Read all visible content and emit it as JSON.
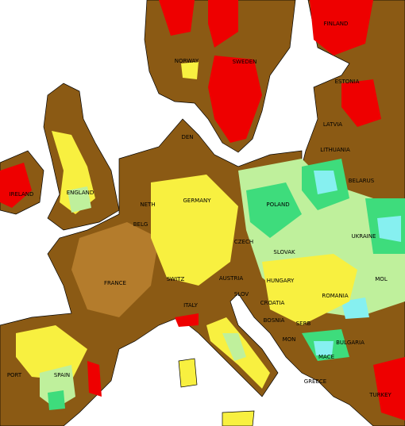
{
  "labels": [
    {
      "text": "FINLAND"
    },
    {
      "text": "NORWAY"
    },
    {
      "text": "SWEDEN"
    },
    {
      "text": "ESTONIA"
    },
    {
      "text": "LATVIA"
    },
    {
      "text": "LITHUANIA"
    },
    {
      "text": "BELARUS"
    },
    {
      "text": "IRELAND"
    },
    {
      "text": "ENGLAND"
    },
    {
      "text": "POLAND"
    },
    {
      "text": "UKRAINE"
    },
    {
      "text": "GERMANY"
    },
    {
      "text": "NETH"
    },
    {
      "text": "BELG"
    },
    {
      "text": "CZECH"
    },
    {
      "text": "SLOVAK"
    },
    {
      "text": "FRANCE"
    },
    {
      "text": "SWITZ"
    },
    {
      "text": "AUSTRIA"
    },
    {
      "text": "HUNGARY"
    },
    {
      "text": "ROMANIA"
    },
    {
      "text": "MOL"
    },
    {
      "text": "SLOV"
    },
    {
      "text": "CROATIA"
    },
    {
      "text": "BOSNIA"
    },
    {
      "text": "SERB"
    },
    {
      "text": "BULGARIA"
    },
    {
      "text": "ITALY"
    },
    {
      "text": "MON"
    },
    {
      "text": "MACE"
    },
    {
      "text": "GREECE"
    },
    {
      "text": "TURKEY"
    },
    {
      "text": "PORT"
    },
    {
      "text": "SPAIN"
    },
    {
      "text": "DEN"
    }
  ]
}
